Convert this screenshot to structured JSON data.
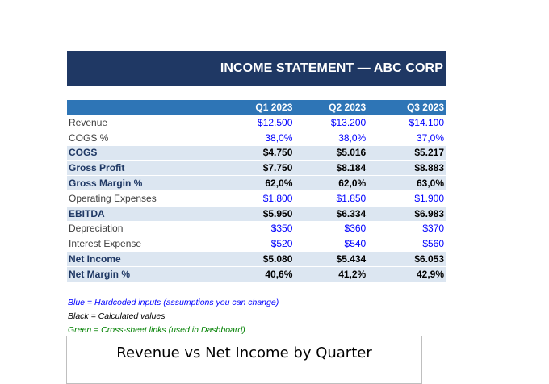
{
  "banner": {
    "title": "INCOME STATEMENT — ABC CORP"
  },
  "table": {
    "headers": [
      "",
      "Q1 2023",
      "Q2 2023",
      "Q3 2023"
    ],
    "rows": [
      {
        "label": "Revenue",
        "values": [
          "$12.500",
          "$13.200",
          "$14.100"
        ],
        "style": "input"
      },
      {
        "label": "COGS %",
        "values": [
          "38,0%",
          "38,0%",
          "37,0%"
        ],
        "style": "input"
      },
      {
        "label": "COGS",
        "values": [
          "$4.750",
          "$5.016",
          "$5.217"
        ],
        "style": "calc"
      },
      {
        "label": "Gross Profit",
        "values": [
          "$7.750",
          "$8.184",
          "$8.883"
        ],
        "style": "calc"
      },
      {
        "label": "Gross Margin %",
        "values": [
          "62,0%",
          "62,0%",
          "63,0%"
        ],
        "style": "calc"
      },
      {
        "label": "Operating Expenses",
        "values": [
          "$1.800",
          "$1.850",
          "$1.900"
        ],
        "style": "input"
      },
      {
        "label": "EBITDA",
        "values": [
          "$5.950",
          "$6.334",
          "$6.983"
        ],
        "style": "calc"
      },
      {
        "label": "Depreciation",
        "values": [
          "$350",
          "$360",
          "$370"
        ],
        "style": "input"
      },
      {
        "label": "Interest Expense",
        "values": [
          "$520",
          "$540",
          "$560"
        ],
        "style": "input"
      },
      {
        "label": "Net Income",
        "values": [
          "$5.080",
          "$5.434",
          "$6.053"
        ],
        "style": "calc"
      },
      {
        "label": "Net Margin %",
        "values": [
          "40,6%",
          "41,2%",
          "42,9%"
        ],
        "style": "calc"
      }
    ]
  },
  "legend": {
    "blue": "Blue = Hardcoded inputs (assumptions you can change)",
    "black": "Black = Calculated values",
    "green": "Green = Cross-sheet links (used in Dashboard)"
  },
  "chart": {
    "title": "Revenue vs Net Income by Quarter"
  },
  "colors": {
    "banner": "#1f3864",
    "header": "#2e75b6",
    "calc_row": "#dce6f1",
    "input": "#0000ff",
    "link": "#008000"
  }
}
